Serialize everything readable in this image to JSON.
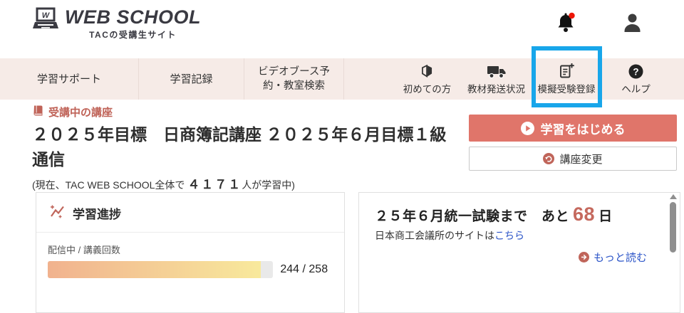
{
  "header": {
    "logo_title": "WEB SCHOOL",
    "logo_subtitle": "TACの受講生サイト",
    "bell_icon": "notification-bell-with-red-badge",
    "user_icon": "user-account"
  },
  "nav": {
    "tabs": [
      {
        "label": "学習サポート"
      },
      {
        "label": "学習記録"
      },
      {
        "label": "ビデオブース予約・教室検索"
      }
    ],
    "icon_tabs": [
      {
        "label": "初めての方",
        "icon": "beginner-mark-icon",
        "highlighted": false
      },
      {
        "label": "教材発送状況",
        "icon": "truck-icon",
        "highlighted": false
      },
      {
        "label": "模擬受験登録",
        "icon": "document-plus-icon",
        "highlighted": true
      },
      {
        "label": "ヘルプ",
        "icon": "question-icon",
        "highlighted": false
      }
    ]
  },
  "main": {
    "section_label": "受講中の講座",
    "course_title_line1": "２０２５年目標　日商簿記講座 ２０２５年６月目標１級",
    "course_title_line2": "通信",
    "learners_prefix": "(現在、TAC WEB SCHOOL全体で ",
    "learners_count": "４１７１",
    "learners_suffix": "人が学習中)",
    "start_button_label": "学習をはじめる",
    "change_button_label": "講座変更"
  },
  "progress_card": {
    "title": "学習進捗",
    "metric_label": "配信中 / 講義回数",
    "current": 244,
    "total": 258,
    "value_text": "244 / 258"
  },
  "exam_card": {
    "countdown_prefix": "２５年６月統一試験まで　あと",
    "days_remaining": "68",
    "countdown_suffix": "日",
    "info_text": "日本商工会議所のサイトは",
    "info_link_label": "こちら",
    "more_link_label": "もっと読む"
  },
  "colors": {
    "accent_salmon": "#e0756a",
    "section_accent": "#bf6257",
    "nav_background": "#f6ebe7",
    "highlight_blue": "#18a6ea",
    "link_blue": "#2c55c8",
    "days_red": "#c5695e",
    "progress_gradient_start": "#f1b28e",
    "progress_gradient_end": "#f8e99c"
  }
}
